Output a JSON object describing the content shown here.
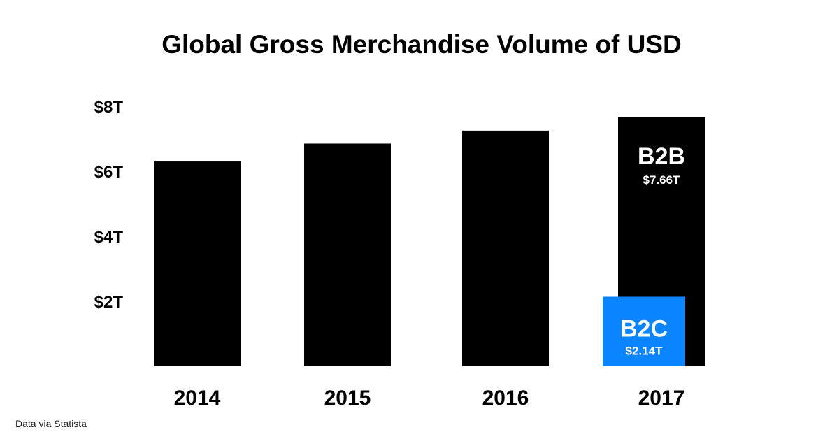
{
  "chart_data": {
    "type": "bar",
    "title": "Global Gross Merchandise Volume of USD",
    "categories": [
      "2014",
      "2015",
      "2016",
      "2017"
    ],
    "y_tick_labels": [
      "$2T",
      "$4T",
      "$6T",
      "$8T"
    ],
    "y_tick_values": [
      2,
      4,
      6,
      8
    ],
    "ylim": [
      0,
      8
    ],
    "y_unit": "trillion USD",
    "grid": false,
    "legend": "none",
    "series": [
      {
        "name": "B2B",
        "color": "#000000",
        "values": [
          6.3,
          6.85,
          7.25,
          7.66
        ],
        "data_labels": [
          null,
          null,
          null,
          "$7.66T"
        ]
      },
      {
        "name": "B2C",
        "color": "#0a84ff",
        "values": [
          null,
          null,
          null,
          2.14
        ],
        "data_labels": [
          null,
          null,
          null,
          "$2.14T"
        ]
      }
    ]
  },
  "footer": {
    "source_text": "Data via Statista"
  }
}
